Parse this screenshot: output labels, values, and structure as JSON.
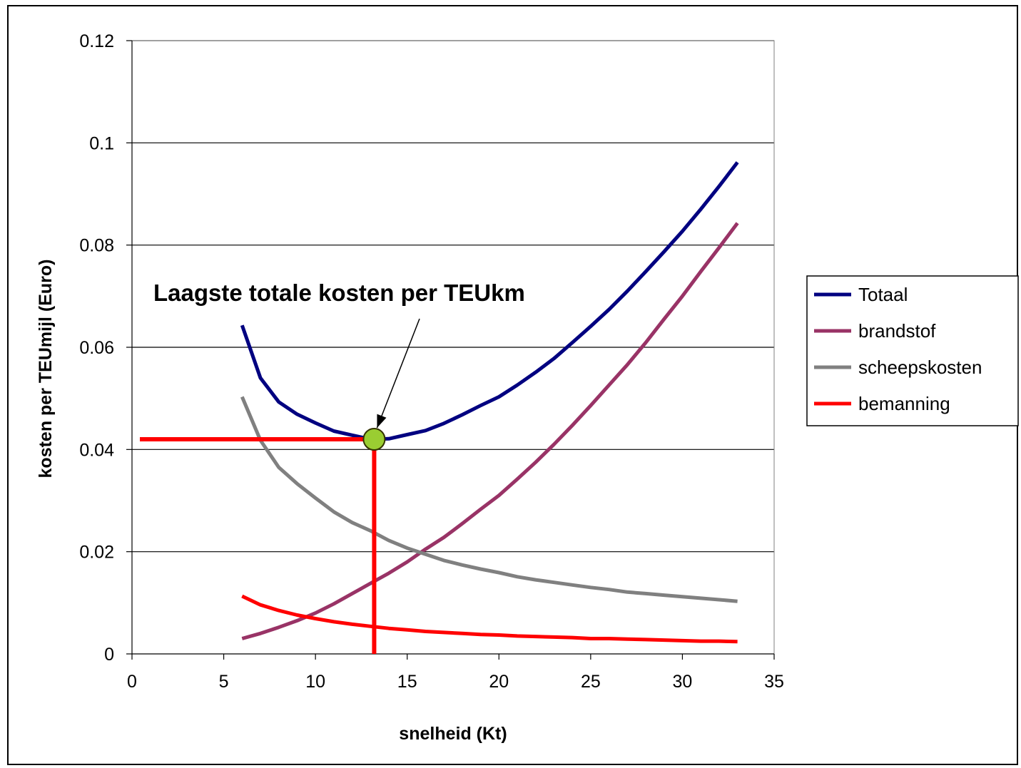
{
  "chart_data": {
    "type": "line",
    "title": "",
    "xlabel": "snelheid (Kt)",
    "ylabel": "kosten per TEUmijl (Euro)",
    "xlim": [
      0,
      35
    ],
    "ylim": [
      0,
      0.12
    ],
    "xticks": [
      "0",
      "5",
      "10",
      "15",
      "20",
      "25",
      "30",
      "35"
    ],
    "yticks": [
      "0",
      "0.02",
      "0.04",
      "0.06",
      "0.08",
      "0.1",
      "0.12"
    ],
    "grid": "horizontal",
    "legend_position": "right",
    "x": [
      6,
      7,
      8,
      9,
      10,
      11,
      12,
      13,
      14,
      15,
      16,
      17,
      18,
      19,
      20,
      21,
      22,
      23,
      24,
      25,
      26,
      27,
      28,
      29,
      30,
      31,
      32,
      33
    ],
    "series": [
      {
        "name": "Totaal",
        "color": "#000080",
        "values": [
          0.0643,
          0.054,
          0.0493,
          0.0469,
          0.0452,
          0.0436,
          0.0428,
          0.042,
          0.0421,
          0.0429,
          0.0437,
          0.0451,
          0.0468,
          0.0486,
          0.0503,
          0.0526,
          0.0551,
          0.0578,
          0.0609,
          0.0641,
          0.0674,
          0.071,
          0.0748,
          0.0787,
          0.0827,
          0.087,
          0.0915,
          0.0962
        ]
      },
      {
        "name": "brandstof",
        "color": "#993366",
        "values": [
          0.003,
          0.004,
          0.0052,
          0.0065,
          0.008,
          0.0098,
          0.0118,
          0.0138,
          0.0158,
          0.018,
          0.0205,
          0.0228,
          0.0255,
          0.0283,
          0.031,
          0.0342,
          0.0375,
          0.041,
          0.0447,
          0.0486,
          0.0526,
          0.0566,
          0.0609,
          0.0655,
          0.07,
          0.0748,
          0.0795,
          0.0843
        ]
      },
      {
        "name": "scheepskosten",
        "color": "#808080",
        "values": [
          0.0503,
          0.0418,
          0.0365,
          0.0333,
          0.0305,
          0.0278,
          0.0257,
          0.0241,
          0.0222,
          0.0207,
          0.0195,
          0.0183,
          0.0174,
          0.0166,
          0.0159,
          0.0151,
          0.0145,
          0.014,
          0.0135,
          0.013,
          0.0126,
          0.0121,
          0.0118,
          0.0115,
          0.0112,
          0.0109,
          0.0106,
          0.0103
        ]
      },
      {
        "name": "bemanning",
        "color": "#ff0000",
        "values": [
          0.0113,
          0.0096,
          0.0085,
          0.0076,
          0.0069,
          0.0063,
          0.0058,
          0.0054,
          0.005,
          0.0047,
          0.0044,
          0.0042,
          0.004,
          0.0038,
          0.0037,
          0.0035,
          0.0034,
          0.0033,
          0.0032,
          0.003,
          0.003,
          0.0029,
          0.0028,
          0.0027,
          0.0026,
          0.0025,
          0.0025,
          0.0024
        ]
      }
    ],
    "annotation": {
      "text": "Laagste totale kosten per TEUkm",
      "x": 13.2,
      "y": 0.042,
      "marker_color": "#9acd32",
      "guide_color": "#ff0000"
    }
  }
}
